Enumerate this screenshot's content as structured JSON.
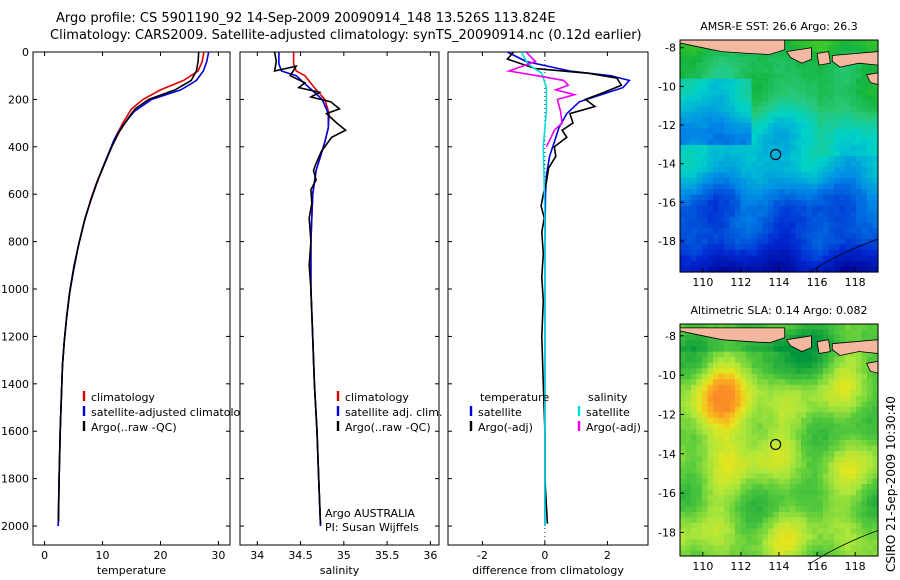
{
  "header": {
    "line1": "Argo profile: CS 5901190_92 14-Sep-2009 20090914_148 13.526S 113.824E",
    "line2": "Climatology: CARS2009. Satellite-adjusted climatology: synTS_20090914.nc (0.12d earlier)"
  },
  "side_label": "CSIRO 21-Sep-2009 10:30:40",
  "colors": {
    "clim": "#dd0000",
    "sat": "#0000dd",
    "argo": "#000000",
    "cyan": "#00dddd",
    "magenta": "#ee00ee",
    "land": "#f4b8a0"
  },
  "chart_data": [
    {
      "type": "line",
      "id": "temperature",
      "xlabel": "temperature",
      "ylabel": "",
      "xlim": [
        -2,
        32
      ],
      "ylim": [
        2080,
        0
      ],
      "xticks": [
        0,
        10,
        20,
        30
      ],
      "yticks": [
        0,
        200,
        400,
        600,
        800,
        1000,
        1200,
        1400,
        1600,
        1800,
        2000
      ],
      "series": [
        {
          "name": "climatology",
          "color": "#dd0000",
          "points": [
            [
              27.5,
              0
            ],
            [
              27.2,
              40
            ],
            [
              26.5,
              80
            ],
            [
              24,
              120
            ],
            [
              20,
              160
            ],
            [
              17,
              200
            ],
            [
              15,
              240
            ],
            [
              13.5,
              300
            ],
            [
              12.2,
              360
            ],
            [
              11.2,
              420
            ],
            [
              10.2,
              480
            ],
            [
              9,
              550
            ],
            [
              8,
              620
            ],
            [
              6.8,
              720
            ],
            [
              5.8,
              820
            ],
            [
              5,
              920
            ],
            [
              4.3,
              1020
            ],
            [
              3.8,
              1120
            ],
            [
              3.4,
              1220
            ],
            [
              3.1,
              1320
            ],
            [
              2.9,
              1450
            ],
            [
              2.7,
              1600
            ],
            [
              2.5,
              1800
            ],
            [
              2.35,
              2000
            ]
          ]
        },
        {
          "name": "satellite-adjusted climatology",
          "color": "#0000dd",
          "points": [
            [
              28.3,
              0
            ],
            [
              28,
              40
            ],
            [
              27.4,
              80
            ],
            [
              26.2,
              120
            ],
            [
              23.5,
              160
            ],
            [
              18.5,
              200
            ],
            [
              15.5,
              250
            ],
            [
              13.5,
              310
            ],
            [
              12,
              370
            ],
            [
              11,
              430
            ],
            [
              10,
              490
            ],
            [
              8.9,
              560
            ],
            [
              7.9,
              630
            ],
            [
              6.8,
              720
            ],
            [
              5.8,
              820
            ],
            [
              5,
              920
            ],
            [
              4.3,
              1020
            ],
            [
              3.8,
              1120
            ],
            [
              3.4,
              1220
            ],
            [
              3.1,
              1320
            ],
            [
              2.9,
              1450
            ],
            [
              2.7,
              1600
            ],
            [
              2.5,
              1800
            ],
            [
              2.35,
              2000
            ]
          ]
        },
        {
          "name": "Argo(..raw -QC)",
          "color": "#000000",
          "points": [
            [
              26.6,
              0
            ],
            [
              26.5,
              40
            ],
            [
              26.2,
              80
            ],
            [
              25.3,
              120
            ],
            [
              22.5,
              160
            ],
            [
              18,
              200
            ],
            [
              15.6,
              240
            ],
            [
              14.4,
              280
            ],
            [
              12.8,
              340
            ],
            [
              11.6,
              400
            ],
            [
              10.4,
              470
            ],
            [
              9.2,
              540
            ],
            [
              8.2,
              610
            ],
            [
              7,
              700
            ],
            [
              6,
              800
            ],
            [
              5.1,
              900
            ],
            [
              4.4,
              1000
            ],
            [
              3.8,
              1120
            ],
            [
              3.4,
              1220
            ],
            [
              3.1,
              1320
            ],
            [
              2.9,
              1450
            ],
            [
              2.7,
              1600
            ],
            [
              2.5,
              1800
            ],
            [
              2.4,
              1980
            ]
          ]
        }
      ],
      "legend": [
        {
          "label": "climatology",
          "color": "#dd0000"
        },
        {
          "label": "satellite-adjusted climatology",
          "color": "#0000dd"
        },
        {
          "label": "Argo(..raw -QC)",
          "color": "#000000"
        }
      ]
    },
    {
      "type": "line",
      "id": "salinity",
      "xlabel": "salinity",
      "ylabel": "",
      "xlim": [
        33.8,
        36.1
      ],
      "ylim": [
        2080,
        0
      ],
      "xticks": [
        34,
        34.5,
        35,
        35.5,
        36
      ],
      "yticks": [
        0,
        200,
        400,
        600,
        800,
        1000,
        1200,
        1400,
        1600,
        1800,
        2000
      ],
      "series": [
        {
          "name": "climatology",
          "color": "#dd0000",
          "points": [
            [
              34.42,
              0
            ],
            [
              34.42,
              50
            ],
            [
              34.45,
              80
            ],
            [
              34.55,
              100
            ],
            [
              34.66,
              150
            ],
            [
              34.78,
              200
            ],
            [
              34.83,
              260
            ],
            [
              34.82,
              320
            ],
            [
              34.78,
              380
            ],
            [
              34.73,
              440
            ],
            [
              34.68,
              500
            ],
            [
              34.64,
              600
            ],
            [
              34.62,
              800
            ],
            [
              34.62,
              1000
            ],
            [
              34.64,
              1200
            ],
            [
              34.66,
              1400
            ],
            [
              34.69,
              1600
            ],
            [
              34.71,
              1800
            ],
            [
              34.73,
              2000
            ]
          ]
        },
        {
          "name": "satellite adj. clim.",
          "color": "#0000dd",
          "points": [
            [
              34.25,
              0
            ],
            [
              34.25,
              50
            ],
            [
              34.28,
              80
            ],
            [
              34.45,
              100
            ],
            [
              34.6,
              150
            ],
            [
              34.75,
              200
            ],
            [
              34.82,
              260
            ],
            [
              34.82,
              320
            ],
            [
              34.78,
              380
            ],
            [
              34.73,
              440
            ],
            [
              34.68,
              500
            ],
            [
              34.64,
              600
            ],
            [
              34.62,
              800
            ],
            [
              34.62,
              1000
            ],
            [
              34.64,
              1200
            ],
            [
              34.66,
              1400
            ],
            [
              34.69,
              1600
            ],
            [
              34.71,
              1800
            ],
            [
              34.73,
              2000
            ]
          ]
        },
        {
          "name": "Argo(..raw -QC)",
          "color": "#000000",
          "points": [
            [
              34.2,
              0
            ],
            [
              34.22,
              40
            ],
            [
              34.2,
              80
            ],
            [
              34.45,
              60
            ],
            [
              34.38,
              100
            ],
            [
              34.55,
              130
            ],
            [
              34.48,
              150
            ],
            [
              34.72,
              170
            ],
            [
              34.62,
              190
            ],
            [
              34.85,
              210
            ],
            [
              34.95,
              240
            ],
            [
              34.8,
              260
            ],
            [
              34.92,
              300
            ],
            [
              35.02,
              330
            ],
            [
              34.86,
              360
            ],
            [
              34.74,
              420
            ],
            [
              34.68,
              470
            ],
            [
              34.65,
              500
            ],
            [
              34.68,
              540
            ],
            [
              34.62,
              580
            ],
            [
              34.63,
              640
            ],
            [
              34.6,
              700
            ],
            [
              34.62,
              800
            ],
            [
              34.6,
              900
            ],
            [
              34.62,
              1000
            ],
            [
              34.64,
              1200
            ],
            [
              34.66,
              1400
            ],
            [
              34.69,
              1600
            ],
            [
              34.71,
              1800
            ],
            [
              34.73,
              1990
            ]
          ]
        }
      ],
      "legend": [
        {
          "label": "climatology",
          "color": "#dd0000"
        },
        {
          "label": "satellite adj. clim.",
          "color": "#0000dd"
        },
        {
          "label": "Argo(..raw -QC)",
          "color": "#000000"
        }
      ],
      "annotation": [
        "Argo AUSTRALIA",
        "PI: Susan Wijffels"
      ]
    },
    {
      "type": "line",
      "id": "difference",
      "xlabel": "difference from climatology",
      "ylabel": "",
      "xlim": [
        -3.1,
        3.3
      ],
      "ylim": [
        2080,
        0
      ],
      "xticks": [
        -2,
        0,
        2
      ],
      "yticks": [
        0,
        200,
        400,
        600,
        800,
        1000,
        1200,
        1400,
        1600,
        1800,
        2000
      ],
      "series": [
        {
          "name": "temperature satellite",
          "color": "#0000dd",
          "points": [
            [
              -1.2,
              0
            ],
            [
              -0.6,
              40
            ],
            [
              0.8,
              80
            ],
            [
              2.1,
              100
            ],
            [
              2.7,
              120
            ],
            [
              2.5,
              150
            ],
            [
              1.8,
              180
            ],
            [
              1.1,
              210
            ],
            [
              0.7,
              260
            ],
            [
              0.45,
              320
            ],
            [
              0.3,
              380
            ],
            [
              0.15,
              440
            ],
            [
              0.05,
              520
            ],
            [
              0.02,
              600
            ],
            [
              0,
              800
            ],
            [
              0,
              1000
            ],
            [
              0,
              1200
            ],
            [
              0,
              1600
            ],
            [
              0,
              2000
            ]
          ]
        },
        {
          "name": "temperature Argo(-adj)",
          "color": "#000000",
          "points": [
            [
              -1.0,
              0
            ],
            [
              -1.2,
              30
            ],
            [
              -0.3,
              70
            ],
            [
              1.4,
              90
            ],
            [
              2.3,
              110
            ],
            [
              2.45,
              140
            ],
            [
              1.9,
              170
            ],
            [
              1.3,
              200
            ],
            [
              1.6,
              230
            ],
            [
              0.8,
              260
            ],
            [
              0.9,
              300
            ],
            [
              0.55,
              330
            ],
            [
              0.7,
              360
            ],
            [
              0.3,
              400
            ],
            [
              0.35,
              440
            ],
            [
              0.12,
              490
            ],
            [
              0.05,
              550
            ],
            [
              -0.05,
              600
            ],
            [
              -0.12,
              650
            ],
            [
              -0.02,
              700
            ],
            [
              -0.1,
              760
            ],
            [
              -0.05,
              850
            ],
            [
              -0.1,
              950
            ],
            [
              -0.05,
              1050
            ],
            [
              -0.1,
              1200
            ],
            [
              -0.05,
              1400
            ],
            [
              0,
              1600
            ],
            [
              0,
              1800
            ],
            [
              0.08,
              1990
            ]
          ]
        },
        {
          "name": "salinity satellite",
          "color": "#00dddd",
          "points": [
            [
              -0.75,
              0
            ],
            [
              -0.55,
              50
            ],
            [
              -0.1,
              90
            ],
            [
              0.05,
              150
            ],
            [
              0.05,
              250
            ],
            [
              0,
              320
            ],
            [
              -0.05,
              400
            ],
            [
              -0.03,
              500
            ],
            [
              0,
              700
            ],
            [
              0,
              1000
            ],
            [
              0,
              1200
            ],
            [
              0,
              1600
            ],
            [
              0,
              2000
            ]
          ]
        },
        {
          "name": "salinity Argo(-adj)",
          "color": "#ee00ee",
          "points": [
            [
              -0.6,
              0
            ],
            [
              -0.3,
              40
            ],
            [
              -1.15,
              80
            ],
            [
              -0.25,
              100
            ],
            [
              0.6,
              120
            ],
            [
              0.75,
              140
            ],
            [
              0.35,
              160
            ],
            [
              0.95,
              180
            ],
            [
              0.4,
              200
            ],
            [
              0.5,
              250
            ],
            [
              0.55,
              300
            ],
            [
              0.3,
              330
            ],
            [
              0.2,
              360
            ],
            [
              0.05,
              400
            ]
          ]
        }
      ],
      "legend": [
        {
          "label": "temperature",
          "color": ""
        },
        {
          "label": "satellite",
          "color": "#0000dd"
        },
        {
          "label": "Argo(-adj)",
          "color": "#000000"
        },
        {
          "label": "salinity",
          "color": ""
        },
        {
          "label": "satellite",
          "color": "#00dddd"
        },
        {
          "label": "Argo(-adj)",
          "color": "#ee00ee"
        }
      ]
    },
    {
      "type": "heatmap",
      "id": "sst-map",
      "title": "AMSR-E SST: 26.6 Argo: 26.3",
      "xticks": [
        110,
        112,
        114,
        116,
        118
      ],
      "yticks": [
        -8,
        -10,
        -12,
        -14,
        -16,
        -18
      ],
      "xlim": [
        108.8,
        119.2
      ],
      "ylim": [
        -19.6,
        -7.6
      ],
      "float_position": [
        113.824,
        -13.526
      ]
    },
    {
      "type": "heatmap",
      "id": "sla-map",
      "title": "Altimetric SLA: 0.14 Argo: 0.082",
      "xticks": [
        110,
        112,
        114,
        116,
        118
      ],
      "yticks": [
        -8,
        -10,
        -12,
        -14,
        -16,
        -18
      ],
      "xlim": [
        108.8,
        119.2
      ],
      "ylim": [
        -19.2,
        -7.4
      ],
      "float_position": [
        113.824,
        -13.526
      ]
    }
  ]
}
